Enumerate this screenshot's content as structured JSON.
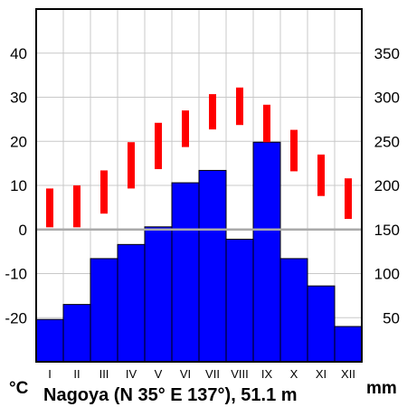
{
  "chart_data": {
    "type": "bar",
    "title": "Nagoya (N 35° E 137°), 51.1 m",
    "categories": [
      "I",
      "II",
      "III",
      "IV",
      "V",
      "VI",
      "VII",
      "VIII",
      "IX",
      "X",
      "XI",
      "XII"
    ],
    "left_axis": {
      "unit": "°C",
      "ticks": [
        "-20",
        "-10",
        "0",
        "10",
        "20",
        "30",
        "40"
      ],
      "range": [
        -30,
        50
      ]
    },
    "right_axis": {
      "unit": "mm",
      "ticks": [
        "50",
        "100",
        "150",
        "200",
        "250",
        "300",
        "350"
      ],
      "range": [
        0,
        400
      ]
    },
    "series": [
      {
        "type": "bar",
        "axis": "right",
        "color": "#0000ff",
        "values": [
          48,
          65,
          117,
          133,
          153,
          203,
          217,
          139,
          249,
          117,
          86,
          40
        ]
      },
      {
        "type": "range",
        "axis": "left",
        "color": "#ff0000",
        "min": [
          0.5,
          0.5,
          3.6,
          9.3,
          13.7,
          18.7,
          22.7,
          23.7,
          19.8,
          13.2,
          7.6,
          2.4
        ],
        "max": [
          9.3,
          10.0,
          13.4,
          19.8,
          24.2,
          27.0,
          30.7,
          32.2,
          28.3,
          22.6,
          17.0,
          11.6
        ]
      }
    ],
    "grid": true,
    "zero_line_color": "#aaaaaa",
    "frame_color": "#000000"
  }
}
